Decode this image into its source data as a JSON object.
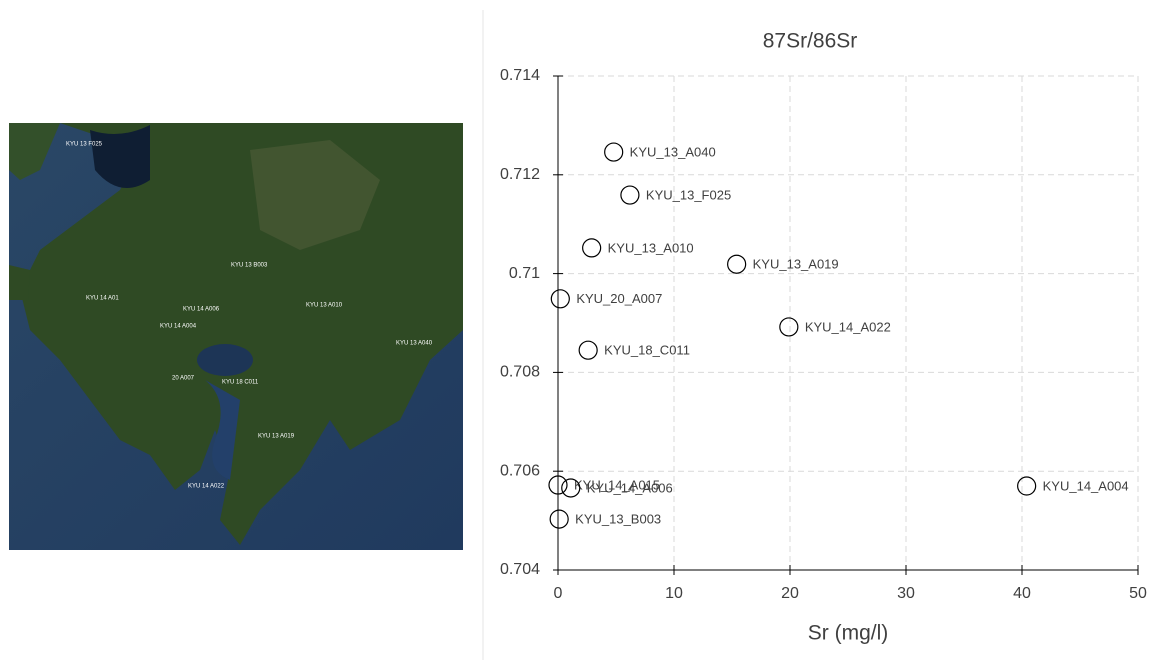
{
  "chart_data": {
    "type": "scatter",
    "title": "87Sr/86Sr",
    "xlabel": "Sr (mg/l)",
    "x": [
      4.8,
      6.2,
      2.9,
      15.4,
      0.2,
      19.9,
      2.6,
      0,
      1.1,
      40.4,
      0.1
    ],
    "values": [
      0.71246,
      0.71159,
      0.71052,
      0.71019,
      0.70949,
      0.70892,
      0.70845,
      0.70572,
      0.70566,
      0.7057,
      0.70503
    ],
    "point_labels": [
      "KYU_13_A040",
      "KYU_13_F025",
      "KYU_13_A010",
      "KYU_13_A019",
      "KYU_20_A007",
      "KYU_14_A022",
      "KYU_18_C011",
      "KYU_14_A015",
      "KYU_14_A006",
      "KYU_14_A004",
      "KYU_13_B003"
    ],
    "color": "#000000",
    "xlim": [
      0,
      50
    ],
    "xticks": [
      0,
      10,
      20,
      30,
      40,
      50
    ],
    "ylim": [
      0.704,
      0.714
    ],
    "yticks": [
      0.704,
      0.706,
      0.708,
      0.71,
      0.712,
      0.714
    ],
    "grid": true
  },
  "map": {
    "labels": [
      "KYU 13 F025",
      "KYU 13 B003",
      "KYU 14 A01",
      "KYU 14 A006",
      "KYU 14 A004",
      "KYU 13 A010",
      "KYU 13 A040",
      "20 A007",
      "KYU 18 C011",
      "KYU 13 A019",
      "KYU 14 A022"
    ]
  }
}
